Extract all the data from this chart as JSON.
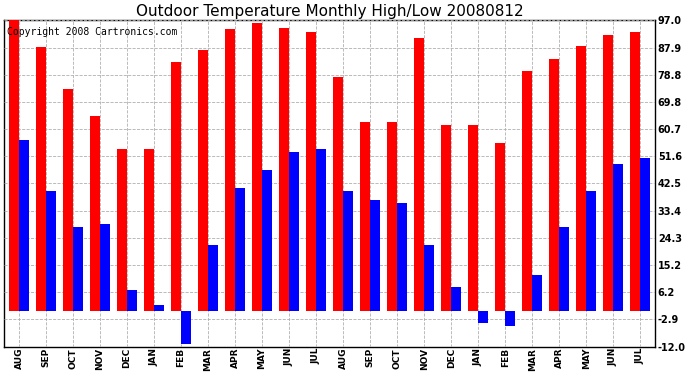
{
  "title": "Outdoor Temperature Monthly High/Low 20080812",
  "copyright": "Copyright 2008 Cartronics.com",
  "months": [
    "AUG",
    "SEP",
    "OCT",
    "NOV",
    "DEC",
    "JAN",
    "FEB",
    "MAR",
    "APR",
    "MAY",
    "JUN",
    "JUL",
    "AUG",
    "SEP",
    "OCT",
    "NOV",
    "DEC",
    "JAN",
    "FEB",
    "MAR",
    "APR",
    "MAY",
    "JUN",
    "JUL"
  ],
  "highs": [
    97.0,
    88.0,
    74.0,
    65.0,
    54.0,
    54.0,
    83.0,
    87.0,
    94.0,
    96.0,
    94.5,
    93.0,
    78.0,
    63.0,
    63.0,
    91.0,
    62.0,
    62.0,
    56.0,
    80.0,
    84.0,
    88.5,
    92.0,
    93.0
  ],
  "lows": [
    57.0,
    40.0,
    28.0,
    29.0,
    7.0,
    2.0,
    -11.0,
    22.0,
    41.0,
    47.0,
    53.0,
    54.0,
    40.0,
    37.0,
    36.0,
    22.0,
    8.0,
    -4.0,
    -5.0,
    12.0,
    28.0,
    40.0,
    49.0,
    51.0
  ],
  "high_color": "#ff0000",
  "low_color": "#0000ff",
  "bg_color": "#ffffff",
  "grid_color": "#b0b0b0",
  "yticks": [
    -12.0,
    -2.9,
    6.2,
    15.2,
    24.3,
    33.4,
    42.5,
    51.6,
    60.7,
    69.8,
    78.8,
    87.9,
    97.0
  ],
  "title_fontsize": 11,
  "copyright_fontsize": 7,
  "bar_width": 0.38
}
